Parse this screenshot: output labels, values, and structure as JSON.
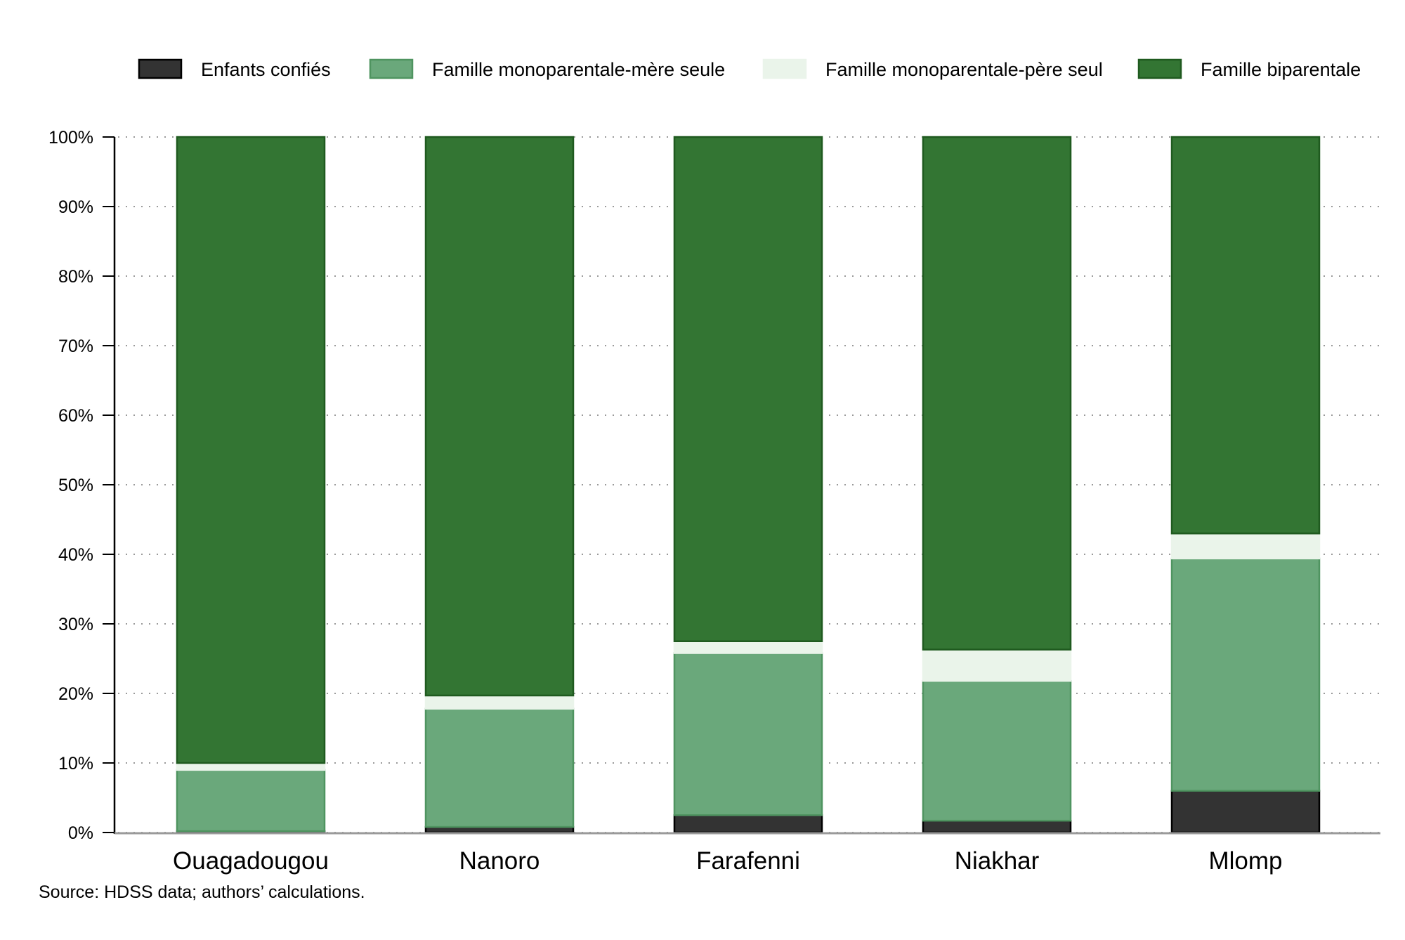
{
  "chart_data": {
    "type": "bar",
    "stacked": true,
    "categories": [
      "Ouagadougou",
      "Nanoro",
      "Farafenni",
      "Niakhar",
      "Mlomp"
    ],
    "series": [
      {
        "name": "Enfants confiés",
        "color": "#333333",
        "stroke": "#000000",
        "values": [
          0.2,
          0.8,
          2.5,
          1.7,
          6.0
        ]
      },
      {
        "name": "Famille monoparentale-mère seule",
        "color": "#6aa87b",
        "stroke": "#4f9460",
        "values": [
          8.8,
          17.0,
          23.3,
          20.1,
          33.4
        ]
      },
      {
        "name": "Famille monoparentale-père seul",
        "color": "#eaf4ea",
        "stroke": "#eaf4ea",
        "values": [
          1.0,
          1.9,
          1.7,
          4.5,
          3.6
        ]
      },
      {
        "name": "Famille biparentale",
        "color": "#337533",
        "stroke": "#1f5a1f",
        "values": [
          90.0,
          80.3,
          72.5,
          73.7,
          57.0
        ]
      }
    ],
    "ylim": [
      0,
      100
    ],
    "yticks": [
      "0%",
      "10%",
      "20%",
      "30%",
      "40%",
      "50%",
      "60%",
      "70%",
      "80%",
      "90%",
      "100%"
    ],
    "grid": true,
    "grid_style": "dotted",
    "legend_position": "top",
    "xlabel": "",
    "ylabel": ""
  },
  "source_note": "Source: HDSS data; authors’ calculations."
}
